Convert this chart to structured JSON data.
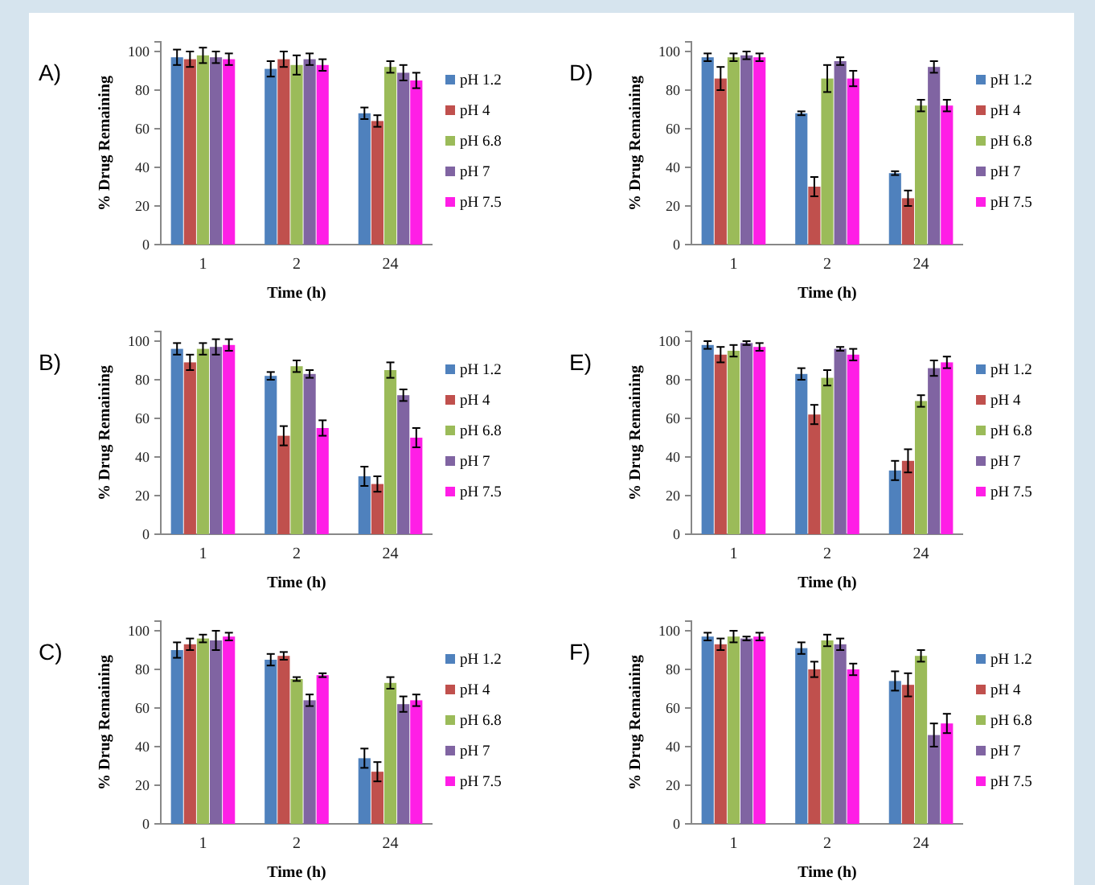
{
  "chart_data": [
    {
      "type": "bar",
      "title": "A)",
      "xlabel": "Time (h)",
      "ylabel": "% Drug Remaining",
      "categories": [
        "1",
        "2",
        "24"
      ],
      "ylim": [
        0,
        105
      ],
      "yticks": [
        0,
        20,
        40,
        60,
        80,
        100
      ],
      "legend": "right",
      "series": [
        {
          "name": "pH 1.2",
          "color": "#4f81bd",
          "values": [
            97,
            91,
            68
          ],
          "errors": [
            4,
            4,
            3
          ]
        },
        {
          "name": "pH 4",
          "color": "#c0504d",
          "values": [
            96,
            96,
            64
          ],
          "errors": [
            4,
            4,
            3
          ]
        },
        {
          "name": "pH 6.8",
          "color": "#9bbb59",
          "values": [
            98,
            93,
            92
          ],
          "errors": [
            4,
            5,
            3
          ]
        },
        {
          "name": "pH 7",
          "color": "#8064a2",
          "values": [
            97,
            96,
            89
          ],
          "errors": [
            3,
            3,
            4
          ]
        },
        {
          "name": "pH 7.5",
          "color": "#ff1ee6",
          "values": [
            96,
            93,
            85
          ],
          "errors": [
            3,
            3,
            4
          ]
        }
      ]
    },
    {
      "type": "bar",
      "title": "D)",
      "xlabel": "Time (h)",
      "ylabel": "% Drug Remaining",
      "categories": [
        "1",
        "2",
        "24"
      ],
      "ylim": [
        0,
        105
      ],
      "yticks": [
        0,
        20,
        40,
        60,
        80,
        100
      ],
      "legend": "right",
      "series": [
        {
          "name": "pH 1.2",
          "color": "#4f81bd",
          "values": [
            97,
            68,
            37
          ],
          "errors": [
            2,
            1,
            1
          ]
        },
        {
          "name": "pH 4",
          "color": "#c0504d",
          "values": [
            86,
            30,
            24
          ],
          "errors": [
            6,
            5,
            4
          ]
        },
        {
          "name": "pH 6.8",
          "color": "#9bbb59",
          "values": [
            97,
            86,
            72
          ],
          "errors": [
            2,
            7,
            3
          ]
        },
        {
          "name": "pH 7",
          "color": "#8064a2",
          "values": [
            98,
            95,
            92
          ],
          "errors": [
            2,
            2,
            3
          ]
        },
        {
          "name": "pH 7.5",
          "color": "#ff1ee6",
          "values": [
            97,
            86,
            72
          ],
          "errors": [
            2,
            4,
            3
          ]
        }
      ]
    },
    {
      "type": "bar",
      "title": "B)",
      "xlabel": "Time (h)",
      "ylabel": "% Drug Remaining",
      "categories": [
        "1",
        "2",
        "24"
      ],
      "ylim": [
        0,
        105
      ],
      "yticks": [
        0,
        20,
        40,
        60,
        80,
        100
      ],
      "legend": "right",
      "series": [
        {
          "name": "pH 1.2",
          "color": "#4f81bd",
          "values": [
            96,
            82,
            30
          ],
          "errors": [
            3,
            2,
            5
          ]
        },
        {
          "name": "pH 4",
          "color": "#c0504d",
          "values": [
            89,
            51,
            26
          ],
          "errors": [
            4,
            5,
            4
          ]
        },
        {
          "name": "pH 6.8",
          "color": "#9bbb59",
          "values": [
            96,
            87,
            85
          ],
          "errors": [
            3,
            3,
            4
          ]
        },
        {
          "name": "pH 7",
          "color": "#8064a2",
          "values": [
            97,
            83,
            72
          ],
          "errors": [
            4,
            2,
            3
          ]
        },
        {
          "name": "pH 7.5",
          "color": "#ff1ee6",
          "values": [
            98,
            55,
            50
          ],
          "errors": [
            3,
            4,
            5
          ]
        }
      ]
    },
    {
      "type": "bar",
      "title": "E)",
      "xlabel": "Time (h)",
      "ylabel": "% Drug Remaining",
      "categories": [
        "1",
        "2",
        "24"
      ],
      "ylim": [
        0,
        105
      ],
      "yticks": [
        0,
        20,
        40,
        60,
        80,
        100
      ],
      "legend": "right",
      "series": [
        {
          "name": "pH 1.2",
          "color": "#4f81bd",
          "values": [
            98,
            83,
            33
          ],
          "errors": [
            2,
            3,
            5
          ]
        },
        {
          "name": "pH 4",
          "color": "#c0504d",
          "values": [
            93,
            62,
            38
          ],
          "errors": [
            4,
            5,
            6
          ]
        },
        {
          "name": "pH 6.8",
          "color": "#9bbb59",
          "values": [
            95,
            81,
            69
          ],
          "errors": [
            3,
            4,
            3
          ]
        },
        {
          "name": "pH 7",
          "color": "#8064a2",
          "values": [
            99,
            96,
            86
          ],
          "errors": [
            1,
            1,
            4
          ]
        },
        {
          "name": "pH 7.5",
          "color": "#ff1ee6",
          "values": [
            97,
            93,
            89
          ],
          "errors": [
            2,
            3,
            3
          ]
        }
      ]
    },
    {
      "type": "bar",
      "title": "C)",
      "xlabel": "Time (h)",
      "ylabel": "% Drug Remaining",
      "categories": [
        "1",
        "2",
        "24"
      ],
      "ylim": [
        0,
        105
      ],
      "yticks": [
        0,
        20,
        40,
        60,
        80,
        100
      ],
      "legend": "right",
      "series": [
        {
          "name": "pH 1.2",
          "color": "#4f81bd",
          "values": [
            90,
            85,
            34
          ],
          "errors": [
            4,
            3,
            5
          ]
        },
        {
          "name": "pH 4",
          "color": "#c0504d",
          "values": [
            93,
            87,
            27
          ],
          "errors": [
            3,
            2,
            5
          ]
        },
        {
          "name": "pH 6.8",
          "color": "#9bbb59",
          "values": [
            96,
            75,
            73
          ],
          "errors": [
            2,
            1,
            3
          ]
        },
        {
          "name": "pH 7",
          "color": "#8064a2",
          "values": [
            95,
            64,
            62
          ],
          "errors": [
            5,
            3,
            4
          ]
        },
        {
          "name": "pH 7.5",
          "color": "#ff1ee6",
          "values": [
            97,
            77,
            64
          ],
          "errors": [
            2,
            1,
            3
          ]
        }
      ]
    },
    {
      "type": "bar",
      "title": "F)",
      "xlabel": "Time (h)",
      "ylabel": "% Drug Remaining",
      "categories": [
        "1",
        "2",
        "24"
      ],
      "ylim": [
        0,
        105
      ],
      "yticks": [
        0,
        20,
        40,
        60,
        80,
        100
      ],
      "legend": "right",
      "series": [
        {
          "name": "pH 1.2",
          "color": "#4f81bd",
          "values": [
            97,
            91,
            74
          ],
          "errors": [
            2,
            3,
            5
          ]
        },
        {
          "name": "pH 4",
          "color": "#c0504d",
          "values": [
            93,
            80,
            72
          ],
          "errors": [
            3,
            4,
            6
          ]
        },
        {
          "name": "pH 6.8",
          "color": "#9bbb59",
          "values": [
            97,
            95,
            87
          ],
          "errors": [
            3,
            3,
            3
          ]
        },
        {
          "name": "pH 7",
          "color": "#8064a2",
          "values": [
            96,
            93,
            46
          ],
          "errors": [
            1,
            3,
            6
          ]
        },
        {
          "name": "pH 7.5",
          "color": "#ff1ee6",
          "values": [
            97,
            80,
            52
          ],
          "errors": [
            2,
            3,
            5
          ]
        }
      ]
    }
  ]
}
